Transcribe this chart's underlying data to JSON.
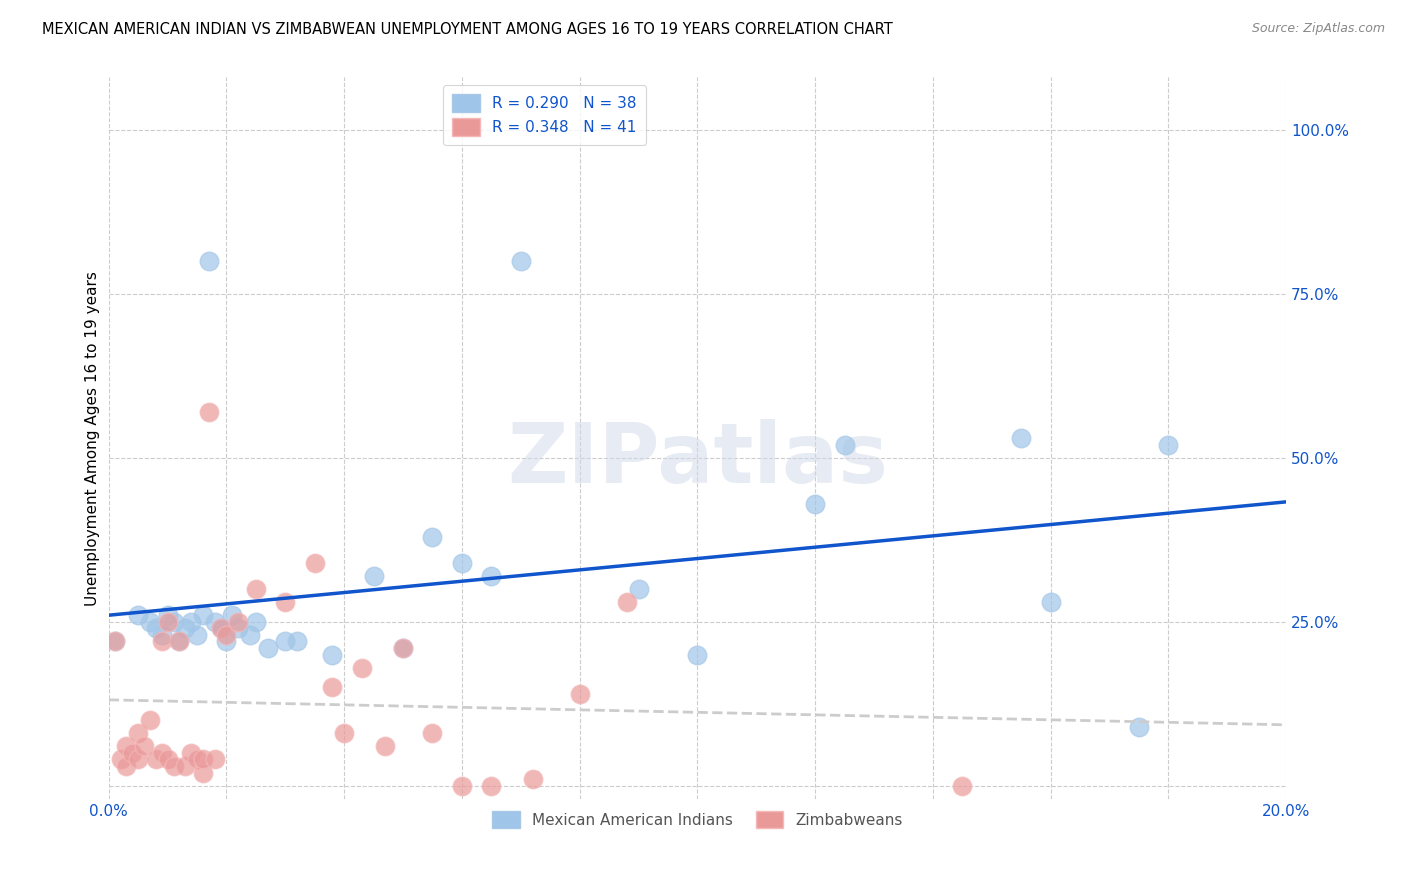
{
  "title": "MEXICAN AMERICAN INDIAN VS ZIMBABWEAN UNEMPLOYMENT AMONG AGES 16 TO 19 YEARS CORRELATION CHART",
  "source": "Source: ZipAtlas.com",
  "ylabel": "Unemployment Among Ages 16 to 19 years",
  "xlim": [
    0.0,
    0.2
  ],
  "ylim": [
    -0.02,
    1.08
  ],
  "ytick_vals": [
    0.0,
    0.25,
    0.5,
    0.75,
    1.0
  ],
  "xtick_vals": [
    0.0,
    0.02,
    0.04,
    0.06,
    0.08,
    0.1,
    0.12,
    0.14,
    0.16,
    0.18,
    0.2
  ],
  "blue_color": "#9fc5e8",
  "pink_color": "#ea9999",
  "blue_line_color": "#1155cc",
  "dashed_line_color": "#cccccc",
  "watermark_text": "ZIPatlas",
  "legend_R1": "R = 0.290",
  "legend_N1": "N = 38",
  "legend_R2": "R = 0.348",
  "legend_N2": "N = 41",
  "blue_scatter_x": [
    0.001,
    0.005,
    0.007,
    0.008,
    0.009,
    0.01,
    0.011,
    0.012,
    0.013,
    0.014,
    0.015,
    0.016,
    0.017,
    0.018,
    0.019,
    0.02,
    0.021,
    0.022,
    0.024,
    0.025,
    0.027,
    0.03,
    0.032,
    0.038,
    0.045,
    0.05,
    0.055,
    0.06,
    0.065,
    0.07,
    0.09,
    0.1,
    0.12,
    0.125,
    0.155,
    0.16,
    0.175,
    0.18
  ],
  "blue_scatter_y": [
    0.22,
    0.26,
    0.25,
    0.24,
    0.23,
    0.26,
    0.25,
    0.22,
    0.24,
    0.25,
    0.23,
    0.26,
    0.8,
    0.25,
    0.24,
    0.22,
    0.26,
    0.24,
    0.23,
    0.25,
    0.21,
    0.22,
    0.22,
    0.2,
    0.32,
    0.21,
    0.38,
    0.34,
    0.32,
    0.8,
    0.3,
    0.2,
    0.43,
    0.52,
    0.53,
    0.28,
    0.09,
    0.52
  ],
  "pink_scatter_x": [
    0.001,
    0.002,
    0.003,
    0.003,
    0.004,
    0.005,
    0.005,
    0.006,
    0.007,
    0.008,
    0.009,
    0.009,
    0.01,
    0.01,
    0.011,
    0.012,
    0.013,
    0.014,
    0.015,
    0.016,
    0.016,
    0.017,
    0.018,
    0.019,
    0.02,
    0.022,
    0.025,
    0.03,
    0.035,
    0.038,
    0.04,
    0.043,
    0.047,
    0.05,
    0.055,
    0.06,
    0.065,
    0.072,
    0.08,
    0.088,
    0.145
  ],
  "pink_scatter_y": [
    0.22,
    0.04,
    0.06,
    0.03,
    0.05,
    0.04,
    0.08,
    0.06,
    0.1,
    0.04,
    0.22,
    0.05,
    0.25,
    0.04,
    0.03,
    0.22,
    0.03,
    0.05,
    0.04,
    0.02,
    0.04,
    0.57,
    0.04,
    0.24,
    0.23,
    0.25,
    0.3,
    0.28,
    0.34,
    0.15,
    0.08,
    0.18,
    0.06,
    0.21,
    0.08,
    0.0,
    0.0,
    0.01,
    0.14,
    0.28,
    0.0
  ]
}
